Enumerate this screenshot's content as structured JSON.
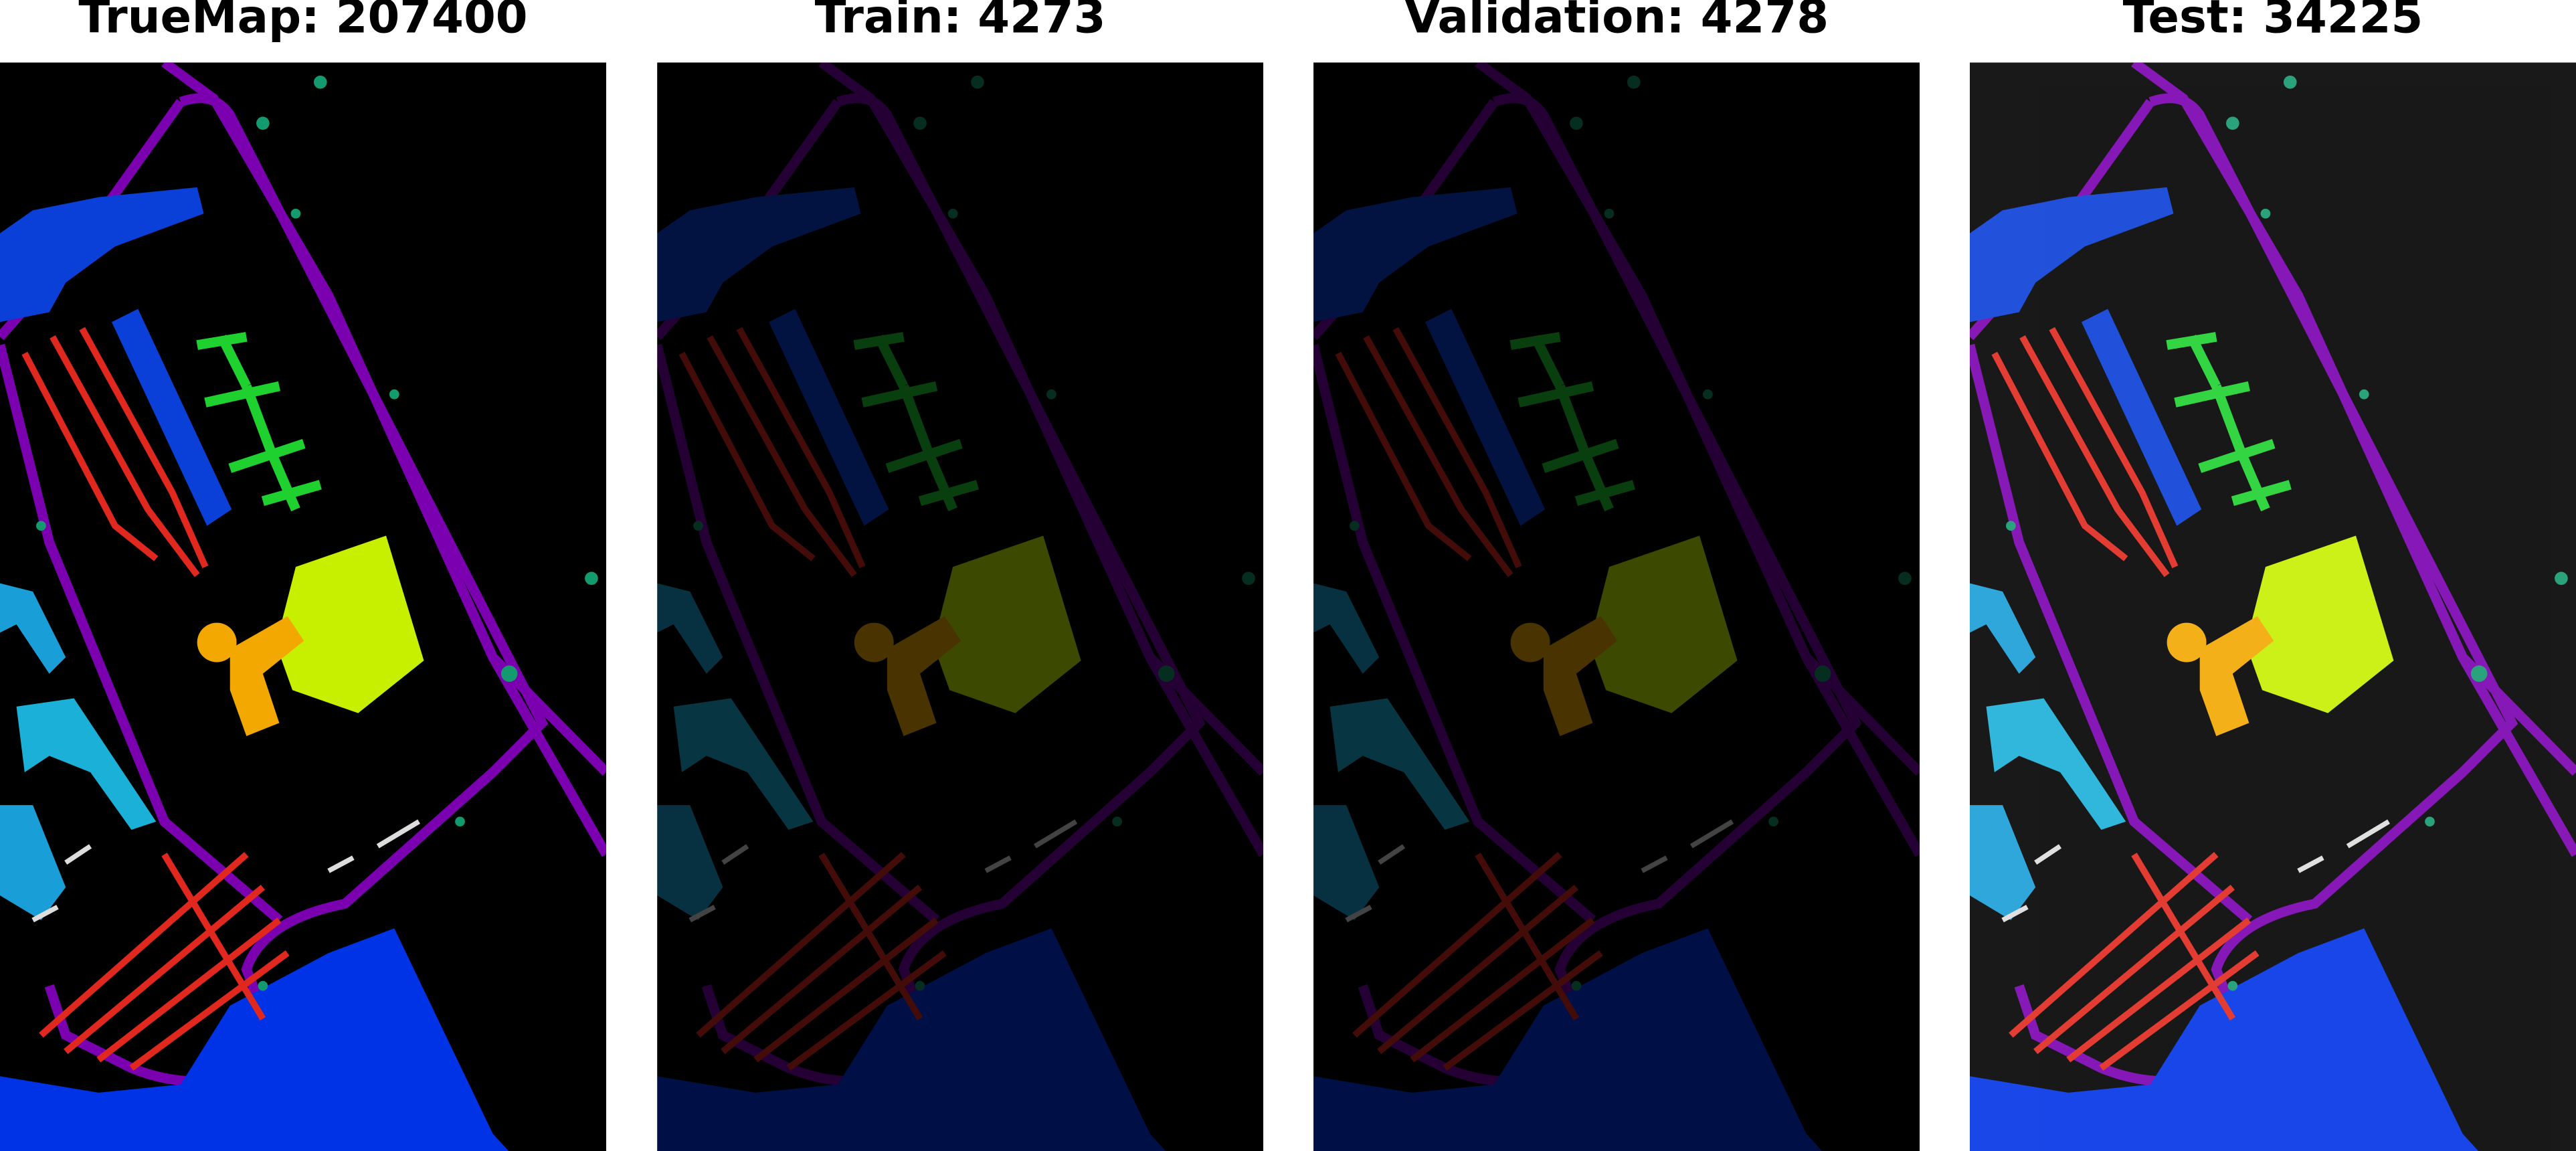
{
  "panels": [
    {
      "title": "TrueMap: 207400"
    },
    {
      "title": "Train: 4273"
    },
    {
      "title": "Validation: 4278"
    },
    {
      "title": "Test: 34225"
    }
  ]
}
